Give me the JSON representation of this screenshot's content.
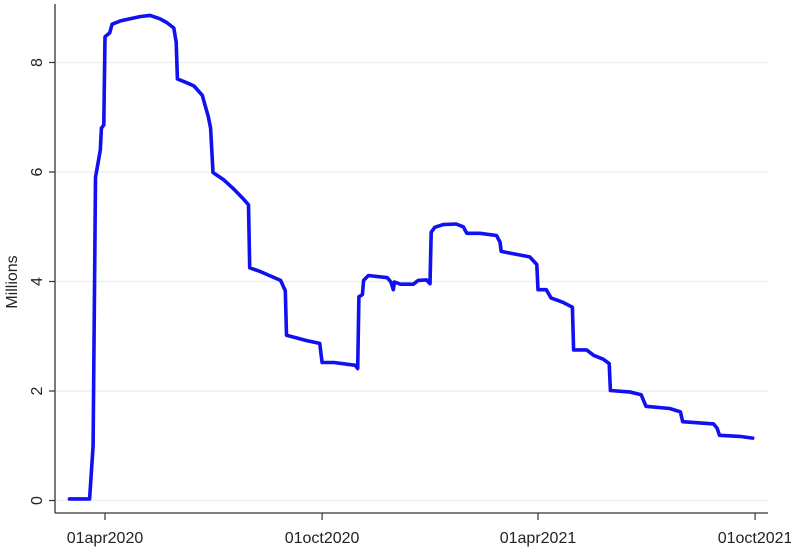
{
  "chart_data": {
    "type": "line",
    "title": "",
    "xlabel": "",
    "ylabel": "Millions",
    "ylim": [
      0,
      8.9
    ],
    "xlim": [
      "2020-02-20",
      "2021-10-12"
    ],
    "grid": true,
    "line_color": "#1010f0",
    "grid_color": "#e6eef2",
    "yticks": [
      {
        "value": 0,
        "label": "0"
      },
      {
        "value": 2,
        "label": "2"
      },
      {
        "value": 4,
        "label": "4"
      },
      {
        "value": 6,
        "label": "6"
      },
      {
        "value": 8,
        "label": "8"
      }
    ],
    "xticks": [
      {
        "value": "2020-04-01",
        "label": "01apr2020"
      },
      {
        "value": "2020-10-01",
        "label": "01oct2020"
      },
      {
        "value": "2021-04-01",
        "label": "01apr2021"
      },
      {
        "value": "2021-10-01",
        "label": "01oct2021"
      }
    ],
    "series": [
      {
        "x": [
          "2020-03-02",
          "2020-03-19",
          "2020-03-22",
          "2020-03-24",
          "2020-03-28",
          "2020-03-29",
          "2020-03-31",
          "2020-04-01",
          "2020-04-05",
          "2020-04-07",
          "2020-04-14",
          "2020-05-01",
          "2020-05-09",
          "2020-05-17",
          "2020-05-23",
          "2020-05-29",
          "2020-05-31",
          "2020-06-01",
          "2020-06-09",
          "2020-06-15",
          "2020-06-22",
          "2020-06-24",
          "2020-06-27",
          "2020-06-29",
          "2020-07-01",
          "2020-07-10",
          "2020-07-18",
          "2020-07-27",
          "2020-07-31",
          "2020-08-01",
          "2020-08-10",
          "2020-08-27",
          "2020-08-31",
          "2020-09-01",
          "2020-09-18",
          "2020-09-29",
          "2020-10-01",
          "2020-10-11",
          "2020-10-29",
          "2020-10-31",
          "2020-11-01",
          "2020-11-04",
          "2020-11-05",
          "2020-11-09",
          "2020-11-25",
          "2020-11-28",
          "2020-11-30",
          "2020-12-01",
          "2020-12-06",
          "2020-12-17",
          "2020-12-21",
          "2020-12-28",
          "2020-12-31",
          "2021-01-01",
          "2021-01-04",
          "2021-01-11",
          "2021-01-22",
          "2021-01-28",
          "2021-01-31",
          "2021-02-11",
          "2021-02-25",
          "2021-02-28",
          "2021-03-01",
          "2021-03-08",
          "2021-03-25",
          "2021-03-31",
          "2021-04-01",
          "2021-04-08",
          "2021-04-12",
          "2021-04-22",
          "2021-04-30",
          "2021-05-01",
          "2021-05-12",
          "2021-05-18",
          "2021-05-26",
          "2021-05-31",
          "2021-06-01",
          "2021-06-18",
          "2021-06-27",
          "2021-07-01",
          "2021-07-21",
          "2021-07-30",
          "2021-08-01",
          "2021-08-27",
          "2021-08-30",
          "2021-09-01",
          "2021-09-18",
          "2021-09-29"
        ],
        "y": [
          0.03,
          0.03,
          1.0,
          5.9,
          6.4,
          6.8,
          6.86,
          8.47,
          8.54,
          8.7,
          8.76,
          8.84,
          8.86,
          8.8,
          8.73,
          8.63,
          8.37,
          7.7,
          7.63,
          7.57,
          7.4,
          7.25,
          7.02,
          6.8,
          5.99,
          5.86,
          5.7,
          5.5,
          5.4,
          4.25,
          4.18,
          4.02,
          3.83,
          3.02,
          2.92,
          2.87,
          2.52,
          2.52,
          2.47,
          2.41,
          3.72,
          3.76,
          4.02,
          4.11,
          4.07,
          3.99,
          3.85,
          3.99,
          3.95,
          3.95,
          4.02,
          4.03,
          3.96,
          4.9,
          4.99,
          5.04,
          5.05,
          5.0,
          4.88,
          4.88,
          4.84,
          4.72,
          4.55,
          4.52,
          4.45,
          4.31,
          3.85,
          3.85,
          3.7,
          3.62,
          3.53,
          2.75,
          2.75,
          2.65,
          2.58,
          2.5,
          2.01,
          1.98,
          1.93,
          1.72,
          1.68,
          1.62,
          1.44,
          1.4,
          1.32,
          1.19,
          1.17,
          1.14
        ]
      }
    ]
  }
}
